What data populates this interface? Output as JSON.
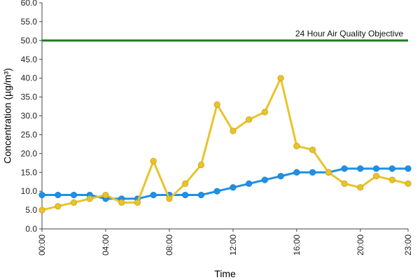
{
  "chart_data": {
    "type": "line",
    "title": "",
    "xlabel": "Time",
    "ylabel": "Concentration (µg/m³)",
    "ylim": [
      0,
      60
    ],
    "y_ticks": [
      "0.0",
      "5.0",
      "10.0",
      "15.0",
      "20.0",
      "25.0",
      "30.0",
      "35.0",
      "40.0",
      "45.0",
      "50.0",
      "55.0",
      "60.0"
    ],
    "x_ticks": [
      "00:00",
      "04:00",
      "08:00",
      "12:00",
      "16:00",
      "20:00",
      "23:00"
    ],
    "x_tick_hours": [
      0,
      4,
      8,
      12,
      16,
      20,
      23
    ],
    "x": [
      0,
      1,
      2,
      3,
      4,
      5,
      6,
      7,
      8,
      9,
      10,
      11,
      12,
      13,
      14,
      15,
      16,
      17,
      18,
      19,
      20,
      21,
      22,
      23
    ],
    "grid": false,
    "legend": "none",
    "reference_line": {
      "label": "24 Hour Air Quality Objective",
      "value": 50,
      "color": "#1e7a1e"
    },
    "series": [
      {
        "color": "#1e90e6",
        "values": [
          9,
          9,
          9,
          9,
          8,
          8,
          8,
          9,
          9,
          9,
          9,
          10,
          11,
          12,
          13,
          14,
          15,
          15,
          15,
          16,
          16,
          16,
          16,
          16
        ]
      },
      {
        "color": "#e8c42a",
        "values": [
          5,
          6,
          7,
          8,
          9,
          7,
          7,
          18,
          8,
          12,
          17,
          33,
          26,
          29,
          31,
          40,
          22,
          21,
          15,
          12,
          11,
          14,
          13,
          12
        ]
      }
    ]
  }
}
